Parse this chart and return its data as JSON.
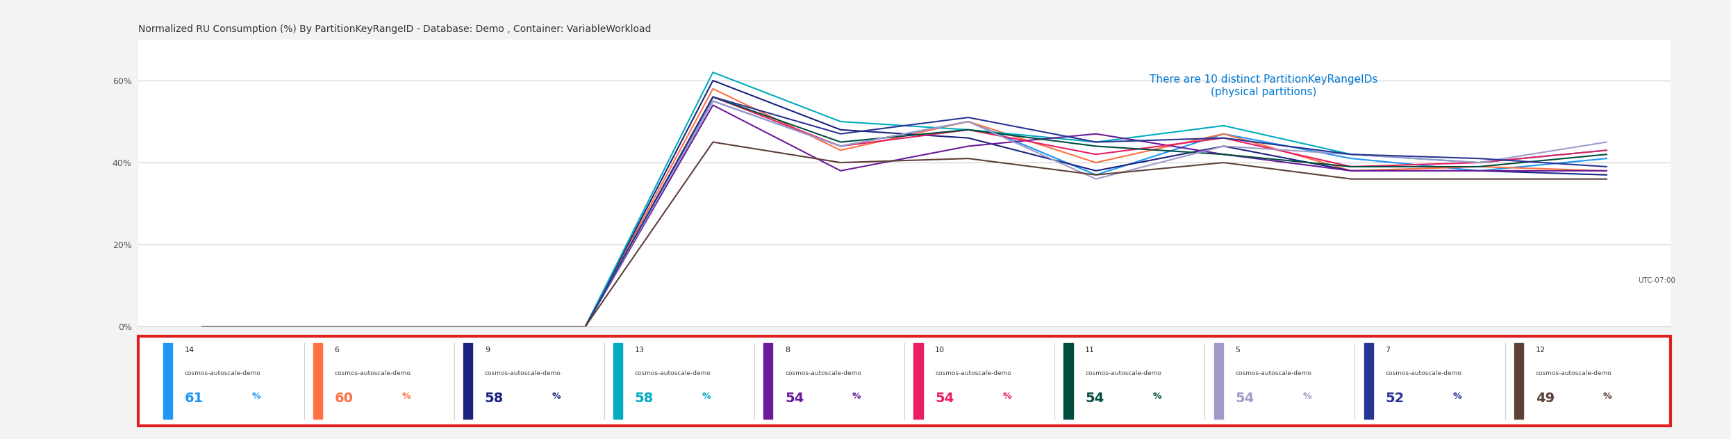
{
  "title": "Normalized RU Consumption (%) By PartitionKeyRangeID - Database: Demo , Container: VariableWorkload",
  "annotation_text": "There are 10 distinct PartitionKeyRangeIDs\n(physical partitions)",
  "annotation_color": "#0078d4",
  "yticks": [
    "0%",
    "20%",
    "40%",
    "60%"
  ],
  "ytick_vals": [
    0,
    20,
    40,
    60
  ],
  "ylim": [
    0,
    70
  ],
  "background_color": "#f3f3f3",
  "chart_bg": "#ffffff",
  "utc_label": "UTC-07:00",
  "legend_items": [
    {
      "id": "14",
      "name": "cosmos-autoscale-demo",
      "value": "61",
      "color": "#2196F3"
    },
    {
      "id": "6",
      "name": "cosmos-autoscale-demo",
      "value": "60",
      "color": "#FF7043"
    },
    {
      "id": "9",
      "name": "cosmos-autoscale-demo",
      "value": "58",
      "color": "#1A237E"
    },
    {
      "id": "13",
      "name": "cosmos-autoscale-demo",
      "value": "58",
      "color": "#00ACC1"
    },
    {
      "id": "8",
      "name": "cosmos-autoscale-demo",
      "value": "54",
      "color": "#6A1B9A"
    },
    {
      "id": "10",
      "name": "cosmos-autoscale-demo",
      "value": "54",
      "color": "#E91E63"
    },
    {
      "id": "11",
      "name": "cosmos-autoscale-demo",
      "value": "54",
      "color": "#004D40"
    },
    {
      "id": "5",
      "name": "cosmos-autoscale-demo",
      "value": "54",
      "color": "#9E9BC8"
    },
    {
      "id": "7",
      "name": "cosmos-autoscale-demo",
      "value": "52",
      "color": "#283593"
    },
    {
      "id": "12",
      "name": "cosmos-autoscale-demo",
      "value": "49",
      "color": "#5D4037"
    }
  ],
  "series": {
    "colors": [
      "#2196F3",
      "#FF7043",
      "#1A237E",
      "#00ACC1",
      "#6A1B9A",
      "#E91E63",
      "#004D40",
      "#9E9BC8",
      "#283593",
      "#5D4037"
    ],
    "x": [
      0,
      1,
      2,
      3,
      4,
      5,
      6,
      7,
      8,
      9,
      10,
      11
    ],
    "data": [
      [
        0,
        0,
        0,
        0,
        55,
        44,
        50,
        37,
        47,
        41,
        38,
        41
      ],
      [
        0,
        0,
        0,
        0,
        58,
        43,
        50,
        40,
        47,
        38,
        39,
        38
      ],
      [
        0,
        0,
        0,
        0,
        60,
        48,
        46,
        38,
        44,
        38,
        38,
        37
      ],
      [
        0,
        0,
        0,
        0,
        62,
        50,
        48,
        45,
        49,
        42,
        40,
        43
      ],
      [
        0,
        0,
        0,
        0,
        54,
        38,
        44,
        47,
        42,
        38,
        38,
        38
      ],
      [
        0,
        0,
        0,
        0,
        56,
        44,
        48,
        42,
        46,
        39,
        40,
        43
      ],
      [
        0,
        0,
        0,
        0,
        56,
        45,
        48,
        44,
        42,
        39,
        39,
        42
      ],
      [
        0,
        0,
        0,
        0,
        55,
        44,
        50,
        36,
        44,
        42,
        40,
        45
      ],
      [
        0,
        0,
        0,
        0,
        56,
        47,
        51,
        45,
        46,
        42,
        41,
        39
      ],
      [
        0,
        0,
        0,
        0,
        45,
        40,
        41,
        37,
        40,
        36,
        36,
        36
      ]
    ]
  }
}
